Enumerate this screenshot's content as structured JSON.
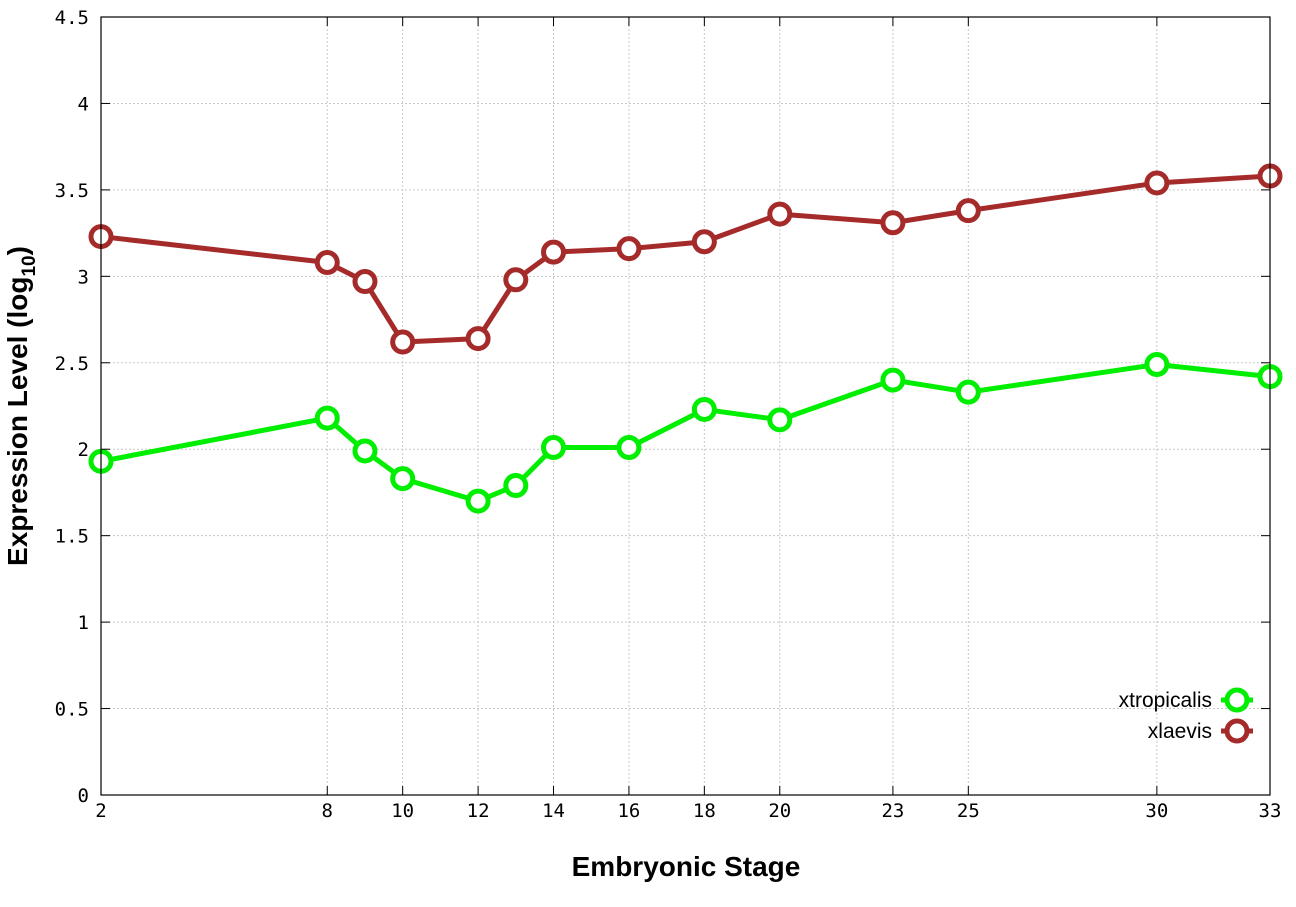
{
  "chart_data": {
    "type": "line",
    "xlabel": "Embryonic Stage",
    "ylabel": "Expression Level (log",
    "ylabel_subscript": "10",
    "ylabel_close": ")",
    "xlim": [
      2,
      33
    ],
    "ylim": [
      0,
      4.5
    ],
    "x_ticks": [
      2,
      8,
      10,
      12,
      14,
      16,
      18,
      20,
      23,
      25,
      30,
      33
    ],
    "y_ticks": [
      0,
      0.5,
      1,
      1.5,
      2,
      2.5,
      3,
      3.5,
      4,
      4.5
    ],
    "y_tick_labels": [
      "0",
      "0.5",
      "1",
      "1.5",
      "2",
      "2.5",
      "3",
      "3.5",
      "4",
      "4.5"
    ],
    "grid": true,
    "legend_position": "bottom-right",
    "series": [
      {
        "name": "xtropicalis",
        "color": "#00ee00",
        "x": [
          2,
          8,
          9,
          10,
          12,
          13,
          14,
          16,
          18,
          20,
          23,
          25,
          30,
          33
        ],
        "values": [
          1.93,
          2.18,
          1.99,
          1.83,
          1.7,
          1.79,
          2.01,
          2.01,
          2.23,
          2.17,
          2.4,
          2.33,
          2.49,
          2.42
        ]
      },
      {
        "name": "xlaevis",
        "color": "#a52a2a",
        "x": [
          2,
          8,
          9,
          10,
          12,
          13,
          14,
          16,
          18,
          20,
          23,
          25,
          30,
          33
        ],
        "values": [
          3.23,
          3.08,
          2.97,
          2.62,
          2.64,
          2.98,
          3.14,
          3.16,
          3.2,
          3.36,
          3.31,
          3.38,
          3.54,
          3.58
        ]
      }
    ]
  }
}
